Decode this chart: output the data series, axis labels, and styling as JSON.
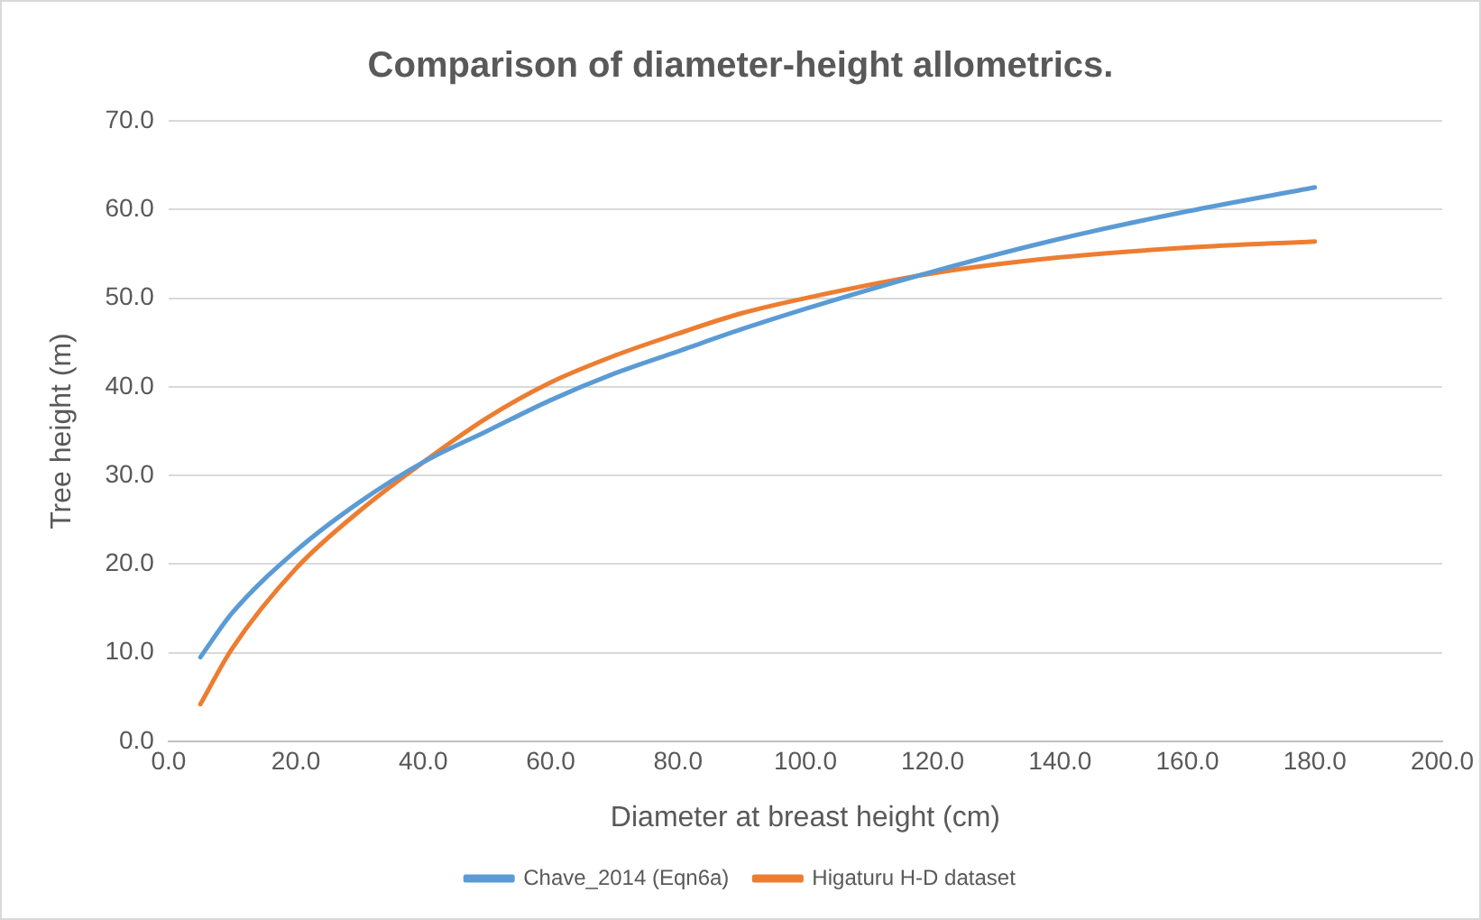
{
  "chart_data": {
    "type": "line",
    "title": "Comparison of diameter-height allometrics.",
    "xlabel": "Diameter at breast height (cm)",
    "ylabel": "Tree height (m)",
    "series": [
      {
        "name": "Chave_2014 (Eqn6a)",
        "color": "#5b9bd5",
        "x": [
          5,
          10,
          20,
          30,
          40,
          50,
          60,
          70,
          80,
          90,
          100,
          120,
          140,
          160,
          180
        ],
        "values": [
          9.5,
          14.5,
          21.5,
          27,
          31.5,
          35,
          38.5,
          41.5,
          44,
          46.5,
          48.8,
          53,
          56.7,
          59.8,
          62.5
        ]
      },
      {
        "name": "Higaturu H-D dataset",
        "color": "#ed7d31",
        "x": [
          5,
          10,
          20,
          30,
          40,
          50,
          60,
          70,
          80,
          90,
          100,
          120,
          140,
          160,
          180
        ],
        "values": [
          4.2,
          10.5,
          19.5,
          26,
          31.5,
          36.5,
          40.5,
          43.5,
          46,
          48.3,
          50,
          52.8,
          54.6,
          55.7,
          56.4
        ]
      }
    ],
    "xlim": [
      0,
      200
    ],
    "xticks": [
      {
        "value": 0,
        "label": "0.0"
      },
      {
        "value": 20,
        "label": "20.0"
      },
      {
        "value": 40,
        "label": "40.0"
      },
      {
        "value": 60,
        "label": "60.0"
      },
      {
        "value": 80,
        "label": "80.0"
      },
      {
        "value": 100,
        "label": "100.0"
      },
      {
        "value": 120,
        "label": "120.0"
      },
      {
        "value": 140,
        "label": "140.0"
      },
      {
        "value": 160,
        "label": "160.0"
      },
      {
        "value": 180,
        "label": "180.0"
      },
      {
        "value": 200,
        "label": "200.0"
      }
    ],
    "ylim": [
      0,
      70
    ],
    "yticks": [
      {
        "value": 0,
        "label": "0.0"
      },
      {
        "value": 10,
        "label": "10.0"
      },
      {
        "value": 20,
        "label": "20.0"
      },
      {
        "value": 30,
        "label": "30.0"
      },
      {
        "value": 40,
        "label": "40.0"
      },
      {
        "value": 50,
        "label": "50.0"
      },
      {
        "value": 60,
        "label": "60.0"
      },
      {
        "value": 70,
        "label": "70.0"
      }
    ],
    "grid": "y",
    "legend": "bottom",
    "marker": "none",
    "line_style": "solid"
  }
}
